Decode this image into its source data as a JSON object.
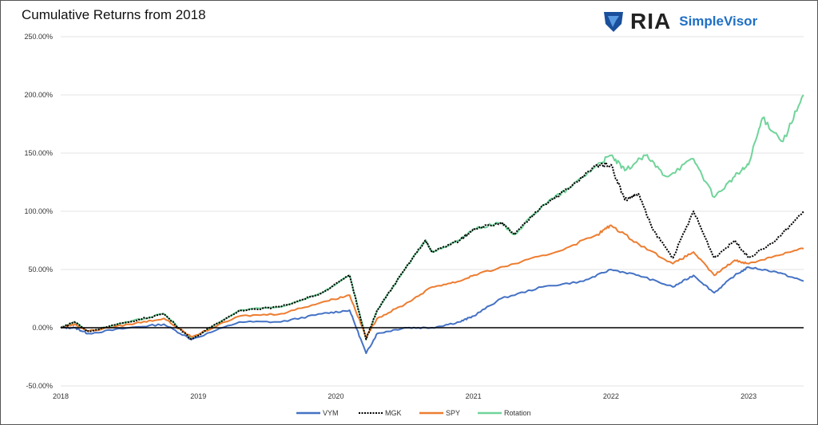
{
  "chart_data": {
    "type": "line",
    "title": "Cumulative Returns from 2018",
    "logo_text": "RIA SimpleVisor",
    "xlabel": "",
    "ylabel": "",
    "x_ticks": [
      "2018",
      "2019",
      "2020",
      "2021",
      "2022",
      "2023"
    ],
    "y_ticks": [
      "250.00%",
      "200.00%",
      "150.00%",
      "100.00%",
      "50.00%",
      "0.00%",
      "-50.00%"
    ],
    "ylim": [
      -50,
      250
    ],
    "xlim": [
      2018,
      2023.4
    ],
    "grid": "horizontal",
    "legend_position": "bottom",
    "series": [
      {
        "name": "VYM",
        "color": "#4472C4",
        "style": "solid",
        "x": [
          2018,
          2018.1,
          2018.2,
          2018.5,
          2018.75,
          2018.95,
          2019.3,
          2019.6,
          2019.9,
          2020.1,
          2020.22,
          2020.3,
          2020.5,
          2020.7,
          2020.9,
          2021.0,
          2021.2,
          2021.5,
          2021.8,
          2022.0,
          2022.2,
          2022.45,
          2022.6,
          2022.75,
          2022.9,
          2023.0,
          2023.2,
          2023.4
        ],
        "y": [
          0,
          0,
          -5,
          0,
          3,
          -10,
          5,
          5,
          12,
          15,
          -22,
          -5,
          0,
          0,
          5,
          10,
          25,
          35,
          40,
          50,
          45,
          35,
          45,
          30,
          45,
          52,
          48,
          40
        ]
      },
      {
        "name": "MGK",
        "color": "#000000",
        "style": "dotted",
        "x": [
          2018,
          2018.1,
          2018.2,
          2018.5,
          2018.75,
          2018.95,
          2019.3,
          2019.6,
          2019.9,
          2020.1,
          2020.22,
          2020.3,
          2020.5,
          2020.65,
          2020.7,
          2020.9,
          2021.0,
          2021.2,
          2021.3,
          2021.5,
          2021.7,
          2021.9,
          2022.0,
          2022.1,
          2022.2,
          2022.3,
          2022.45,
          2022.6,
          2022.75,
          2022.9,
          2023.0,
          2023.2,
          2023.4
        ],
        "y": [
          0,
          5,
          -3,
          5,
          12,
          -10,
          15,
          18,
          30,
          45,
          -10,
          15,
          50,
          75,
          65,
          75,
          85,
          90,
          80,
          105,
          120,
          140,
          140,
          110,
          115,
          85,
          60,
          100,
          60,
          75,
          60,
          75,
          100
        ]
      },
      {
        "name": "SPY",
        "color": "#ED7D31",
        "style": "solid",
        "x": [
          2018,
          2018.1,
          2018.2,
          2018.5,
          2018.75,
          2018.95,
          2019.3,
          2019.6,
          2019.9,
          2020.1,
          2020.22,
          2020.3,
          2020.5,
          2020.7,
          2020.9,
          2021.0,
          2021.3,
          2021.6,
          2021.9,
          2022.0,
          2022.2,
          2022.45,
          2022.6,
          2022.75,
          2022.9,
          2023.0,
          2023.2,
          2023.4
        ],
        "y": [
          0,
          3,
          -3,
          3,
          8,
          -8,
          10,
          12,
          22,
          28,
          -8,
          8,
          20,
          35,
          40,
          45,
          55,
          65,
          80,
          88,
          72,
          55,
          65,
          45,
          58,
          55,
          62,
          68
        ]
      },
      {
        "name": "Rotation",
        "color": "#70D49A",
        "style": "solid",
        "x": [
          2018,
          2018.1,
          2018.2,
          2018.5,
          2018.75,
          2018.95,
          2019.3,
          2019.6,
          2019.9,
          2020.1,
          2020.22,
          2020.3,
          2020.5,
          2020.65,
          2020.7,
          2020.9,
          2021.0,
          2021.2,
          2021.3,
          2021.5,
          2021.7,
          2021.9,
          2022.0,
          2022.1,
          2022.25,
          2022.4,
          2022.6,
          2022.75,
          2022.9,
          2023.0,
          2023.1,
          2023.25,
          2023.4
        ],
        "y": [
          0,
          5,
          -3,
          5,
          12,
          -10,
          15,
          18,
          30,
          45,
          -10,
          15,
          50,
          75,
          65,
          75,
          85,
          90,
          80,
          105,
          120,
          140,
          148,
          135,
          148,
          130,
          145,
          112,
          130,
          140,
          180,
          160,
          200
        ]
      }
    ]
  }
}
